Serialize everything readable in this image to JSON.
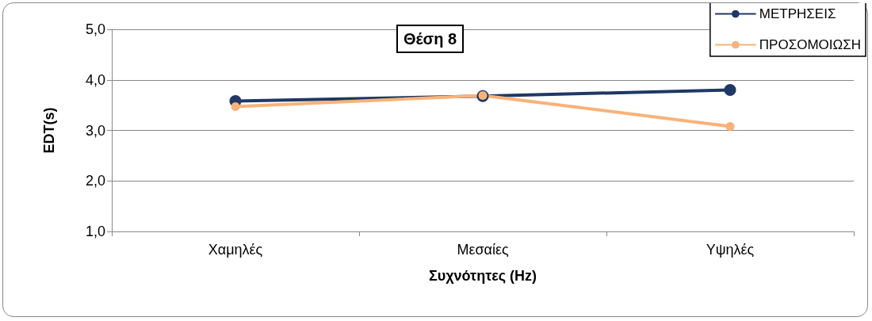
{
  "chart_data": {
    "type": "line",
    "title": "Θέση 8",
    "xlabel": "Συχνότητες (Hz)",
    "ylabel": "EDT(s)",
    "categories": [
      "Χαμηλές",
      "Μεσαίες",
      "Υψηλές"
    ],
    "series": [
      {
        "name": "ΜΕΤΡΗΣΕΙΣ",
        "color": "#1f3864",
        "values": [
          3.58,
          3.68,
          3.8
        ]
      },
      {
        "name": "ΠΡΟΣΟΜΟΙΩΣΗ",
        "color": "#f9b27a",
        "values": [
          3.47,
          3.69,
          3.08
        ]
      }
    ],
    "ylim": [
      1,
      5
    ],
    "yticks": [
      {
        "value": 1,
        "label": "1,0"
      },
      {
        "value": 2,
        "label": "2,0"
      },
      {
        "value": 3,
        "label": "3,0"
      },
      {
        "value": 4,
        "label": "4,0"
      },
      {
        "value": 5,
        "label": "5,0"
      }
    ],
    "grid": "y",
    "legend": "top right",
    "marker": "circle",
    "line_style": "solid"
  }
}
